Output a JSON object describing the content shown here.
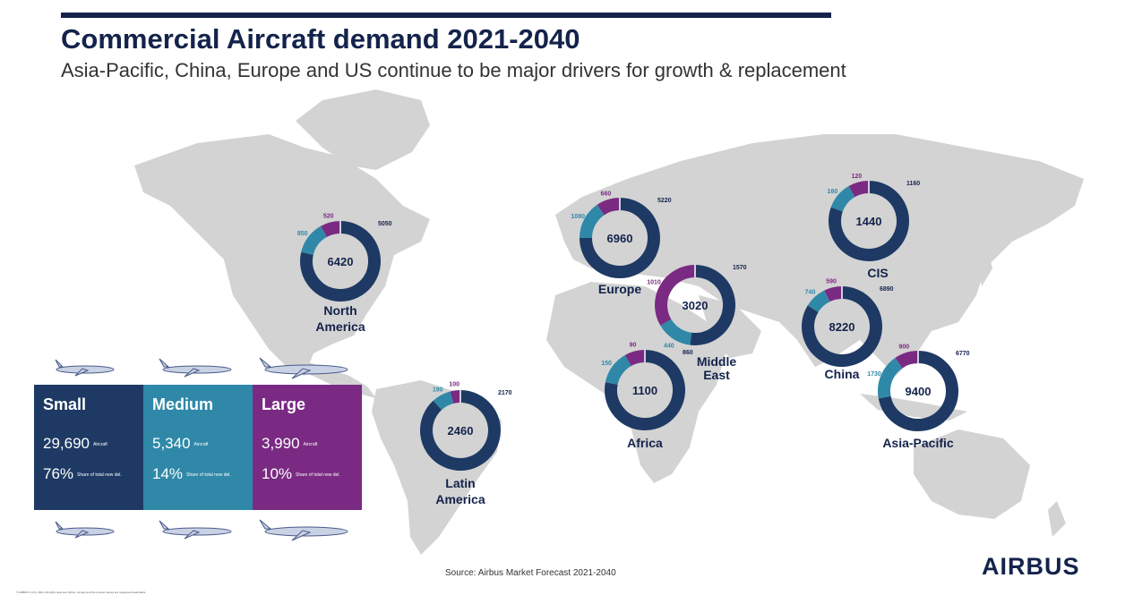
{
  "header": {
    "title": "Commercial Aircraft demand 2021-2040",
    "subtitle": "Asia-Pacific, China, Europe and US continue to be major drivers for growth & replacement"
  },
  "legend": {
    "small": {
      "label": "Small",
      "count": "29,690",
      "count_unit": "Aircraft",
      "share": "76%",
      "share_note": "Share of total new del.",
      "color": "#1e3a64"
    },
    "medium": {
      "label": "Medium",
      "count": "5,340",
      "count_unit": "Aircraft",
      "share": "14%",
      "share_note": "Share of total new del.",
      "color": "#2f88a8"
    },
    "large": {
      "label": "Large",
      "count": "3,990",
      "count_unit": "Aircraft",
      "share": "10%",
      "share_note": "Share of total new del.",
      "color": "#7a2a82"
    }
  },
  "chart_data": {
    "type": "donut",
    "series_names": [
      "Small",
      "Medium",
      "Large"
    ],
    "colors": {
      "small": "#1e3a64",
      "medium": "#2f88a8",
      "large": "#7a2a82"
    },
    "regions": [
      {
        "name": "North America",
        "total": "6420",
        "small": 5050,
        "medium": 850,
        "large": 520
      },
      {
        "name": "Latin America",
        "total": "2460",
        "small": 2170,
        "medium": 190,
        "large": 100
      },
      {
        "name": "Europe",
        "total": "6960",
        "small": 5220,
        "medium": 1080,
        "large": 660
      },
      {
        "name": "Middle East",
        "total": "3020",
        "small": 1570,
        "medium": 440,
        "large": 1010
      },
      {
        "name": "Africa",
        "total": "1100",
        "small": 860,
        "medium": 150,
        "large": 90
      },
      {
        "name": "CIS",
        "total": "1440",
        "small": 1160,
        "medium": 160,
        "large": 120
      },
      {
        "name": "China",
        "total": "8220",
        "small": 6890,
        "medium": 740,
        "large": 590
      },
      {
        "name": "Asia-Pacific",
        "total": "9400",
        "small": 6770,
        "medium": 1730,
        "large": 900
      }
    ]
  },
  "footer": {
    "source": "Source: Airbus Market Forecast 2021-2040",
    "logo": "AIRBUS",
    "fine_print": "© AIRBUS S.A.S. 2021. All rights reserved. Airbus, its logo and the product names are registered trademarks."
  }
}
